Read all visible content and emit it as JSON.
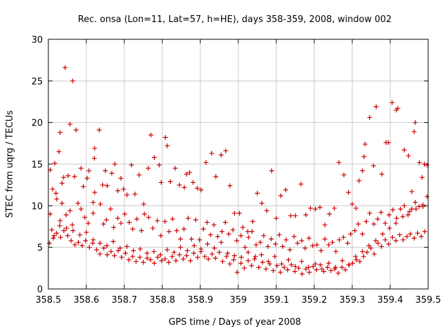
{
  "chart_data": {
    "type": "scatter",
    "title": "Rec. onsa (Lon=11, Lat=57, h=HE), days 358-359, 2008, window 002",
    "xlabel": "GPS time / Days of year 2008",
    "ylabel": "STEC from uqrg / TECUs",
    "xlim": [
      358.5,
      359.5
    ],
    "ylim": [
      0,
      30
    ],
    "xticks": [
      358.5,
      358.6,
      358.7,
      358.8,
      358.9,
      359,
      359.1,
      359.2,
      359.3,
      359.4,
      359.5
    ],
    "xtick_labels": [
      "358.5",
      "358.6",
      "358.7",
      "358.8",
      "358.9",
      "359",
      "359.1",
      "359.2",
      "359.3",
      "359.4",
      "359.5"
    ],
    "yticks": [
      0,
      5,
      10,
      15,
      20,
      25,
      30
    ],
    "ytick_labels": [
      "0",
      "5",
      "10",
      "15",
      "20",
      "25",
      "30"
    ],
    "grid": true,
    "marker": "+",
    "colors": {
      "points": "#cc0000",
      "grid": "#c8c8c8",
      "axes": "#000000"
    },
    "series": [
      {
        "x": [
          358.505,
          358.511,
          358.517,
          358.522,
          358.528,
          358.531,
          358.536,
          358.54,
          358.544,
          358.552,
          358.557,
          358.564,
          358.569,
          358.573,
          358.586,
          358.592,
          358.602,
          358.607,
          358.618,
          358.621,
          358.622,
          358.634,
          358.643,
          358.65,
          358.655,
          358.667,
          358.675,
          358.683,
          358.691,
          358.698,
          358.707,
          358.719,
          358.728,
          358.739,
          358.751,
          358.763,
          358.77,
          358.779,
          358.792,
          358.797,
          358.808,
          358.813,
          358.821,
          358.834,
          358.845,
          358.858,
          358.864,
          358.872,
          358.881,
          358.892,
          358.902,
          358.915,
          358.93,
          358.941,
          358.955,
          358.967,
          358.978,
          358.99,
          359.003,
          359.012,
          359.025,
          359.038,
          359.05,
          359.062,
          359.075,
          359.088,
          359.1,
          359.112,
          359.125,
          359.138,
          359.15,
          359.165,
          359.178,
          359.19,
          359.203,
          359.215,
          359.228,
          359.24,
          359.253,
          359.265,
          359.278,
          359.29,
          359.3,
          359.31,
          359.318,
          359.327,
          359.331,
          359.334,
          359.346,
          359.356,
          359.363,
          359.378,
          359.389,
          359.395,
          359.405,
          359.416,
          359.42,
          359.437,
          359.448,
          359.457,
          359.463,
          359.466,
          359.477,
          359.484,
          359.49,
          359.497
        ],
        "y": [
          14.3,
          12.0,
          15.1,
          10.8,
          16.5,
          18.8,
          10.3,
          13.4,
          26.6,
          13.6,
          19.8,
          25.0,
          13.5,
          19.1,
          14.5,
          12.3,
          13.3,
          14.2,
          10.4,
          15.7,
          16.9,
          19.1,
          12.5,
          14.2,
          12.4,
          13.9,
          15.0,
          11.8,
          13.3,
          12.0,
          11.3,
          14.9,
          11.4,
          13.7,
          10.2,
          14.5,
          18.5,
          15.8,
          14.9,
          12.8,
          18.2,
          17.2,
          12.9,
          14.5,
          12.5,
          12.2,
          13.8,
          14.0,
          12.8,
          12.1,
          11.9,
          15.2,
          16.3,
          13.5,
          16.1,
          16.6,
          12.4,
          9.1,
          9.1,
          7.4,
          6.9,
          8.1,
          11.5,
          10.3,
          9.4,
          14.2,
          8.5,
          11.2,
          11.9,
          8.8,
          8.8,
          12.6,
          8.9,
          9.7,
          9.6,
          9.8,
          7.7,
          9.0,
          9.7,
          15.2,
          13.7,
          11.6,
          10.2,
          9.7,
          13.0,
          14.2,
          15.9,
          17.4,
          20.6,
          14.8,
          21.9,
          13.8,
          17.6,
          17.6,
          22.4,
          21.5,
          21.7,
          16.7,
          16.0,
          11.7,
          18.9,
          20.0,
          15.2,
          13.4,
          15.0,
          14.9
        ]
      },
      {
        "x": [
          358.505,
          358.509,
          358.52,
          358.531,
          358.536,
          358.547,
          358.557,
          358.563,
          358.578,
          358.586,
          358.596,
          358.605,
          358.618,
          358.622,
          358.637,
          358.645,
          358.653,
          358.664,
          358.672,
          358.683,
          358.691,
          358.701,
          358.713,
          358.722,
          358.733,
          358.745,
          358.753,
          358.764,
          358.775,
          358.787,
          358.796,
          358.807,
          358.818,
          358.827,
          358.838,
          358.848,
          358.857,
          358.868,
          358.877,
          358.888,
          358.898,
          358.908,
          358.918,
          358.927,
          358.936,
          358.946,
          358.957,
          358.966,
          358.975,
          358.986,
          358.996,
          359.007,
          359.018,
          359.027,
          359.036,
          359.047,
          359.058,
          359.067,
          359.078,
          359.087,
          359.098,
          359.108,
          359.117,
          359.126,
          359.136,
          359.147,
          359.156,
          359.167,
          359.176,
          359.186,
          359.196,
          359.207,
          359.218,
          359.228,
          359.238,
          359.248,
          359.257,
          359.266,
          359.277,
          359.288,
          359.296,
          359.307,
          359.316,
          359.327,
          359.337,
          359.346,
          359.357,
          359.367,
          359.376,
          359.387,
          359.397,
          359.407,
          359.417,
          359.427,
          359.437,
          359.447,
          359.457,
          359.466,
          359.476,
          359.486,
          359.497
        ],
        "y": [
          9.0,
          7.1,
          11.5,
          8.2,
          12.7,
          8.9,
          9.4,
          7.7,
          10.3,
          9.6,
          8.6,
          7.9,
          9.1,
          11.6,
          10.2,
          7.8,
          8.3,
          9.6,
          7.4,
          8.5,
          7.9,
          9.0,
          8.0,
          7.2,
          8.4,
          7.0,
          9.0,
          8.6,
          7.3,
          8.2,
          6.4,
          8.1,
          6.9,
          8.4,
          7.0,
          6.0,
          7.2,
          8.5,
          6.0,
          8.3,
          5.9,
          7.2,
          8.0,
          6.5,
          7.7,
          6.3,
          6.9,
          8.0,
          6.6,
          7.1,
          5.8,
          6.4,
          5.0,
          6.2,
          6.9,
          5.3,
          5.6,
          6.4,
          5.1,
          6.0,
          5.4,
          6.5,
          5.1,
          5.9,
          4.7,
          6.3,
          5.5,
          5.8,
          4.9,
          6.1,
          5.2,
          5.3,
          4.6,
          6.0,
          5.3,
          5.6,
          4.5,
          5.9,
          6.2,
          5.5,
          6.6,
          7.0,
          7.8,
          6.6,
          8.1,
          9.1,
          7.8,
          8.4,
          9.2,
          7.9,
          8.9,
          9.5,
          8.5,
          9.6,
          10.0,
          8.9,
          9.6,
          10.4,
          9.9,
          10.1,
          11.1
        ]
      },
      {
        "x": [
          358.503,
          358.513,
          358.522,
          358.532,
          358.541,
          358.551,
          358.56,
          358.57,
          358.579,
          358.589,
          358.598,
          358.608,
          358.617,
          358.627,
          358.636,
          358.646,
          358.655,
          358.665,
          358.674,
          358.684,
          358.693,
          358.703,
          358.712,
          358.722,
          358.731,
          358.741,
          358.75,
          358.76,
          358.769,
          358.779,
          358.788,
          358.798,
          358.807,
          358.817,
          358.826,
          358.836,
          358.845,
          358.855,
          358.864,
          358.874,
          358.883,
          358.893,
          358.902,
          358.912,
          358.921,
          358.931,
          358.94,
          358.95,
          358.959,
          358.969,
          358.978,
          358.988,
          358.997,
          359.007,
          359.016,
          359.026,
          359.035,
          359.045,
          359.054,
          359.064,
          359.073,
          359.083,
          359.092,
          359.102,
          359.111,
          359.121,
          359.13,
          359.14,
          359.149,
          359.159,
          359.168,
          359.178,
          359.187,
          359.197,
          359.206,
          359.216,
          359.225,
          359.235,
          359.244,
          359.254,
          359.263,
          359.273,
          359.282,
          359.292,
          359.301,
          359.311,
          359.32,
          359.33,
          359.339,
          359.349,
          359.358,
          359.368,
          359.377,
          359.387,
          359.396,
          359.406,
          359.415,
          359.425,
          359.434,
          359.444,
          359.453,
          359.463,
          359.472,
          359.482,
          359.491
        ],
        "y": [
          5.5,
          6.1,
          6.7,
          6.2,
          7.0,
          6.4,
          5.8,
          5.3,
          5.6,
          5.2,
          5.8,
          5.0,
          5.5,
          4.7,
          4.2,
          4.9,
          4.1,
          4.5,
          4.0,
          4.6,
          3.8,
          4.3,
          3.5,
          3.9,
          3.3,
          3.8,
          3.2,
          3.7,
          3.5,
          3.1,
          3.8,
          3.4,
          3.6,
          3.2,
          3.9,
          3.4,
          4.1,
          3.6,
          4.0,
          3.4,
          4.3,
          3.8,
          4.5,
          3.9,
          3.6,
          4.2,
          3.7,
          4.4,
          3.3,
          3.9,
          3.0,
          3.5,
          2.0,
          3.1,
          2.5,
          3.4,
          2.8,
          3.9,
          2.6,
          3.2,
          2.4,
          3.0,
          2.2,
          2.8,
          2.0,
          2.6,
          2.3,
          2.9,
          2.1,
          2.5,
          1.8,
          2.4,
          2.0,
          2.7,
          2.3,
          2.9,
          2.1,
          2.6,
          2.2,
          2.4,
          1.9,
          2.6,
          2.3,
          2.9,
          3.1,
          3.5,
          3.3,
          3.9,
          4.4,
          4.9,
          4.2,
          5.5,
          5.1,
          5.9,
          5.4,
          6.2,
          5.8,
          6.5,
          5.9,
          6.3,
          6.6,
          6.1,
          6.7,
          6.3,
          6.9
        ]
      },
      {
        "x": [
          358.515,
          358.53,
          358.548,
          358.565,
          358.583,
          358.6,
          358.618,
          358.636,
          358.654,
          358.671,
          358.689,
          358.707,
          358.724,
          358.742,
          358.76,
          358.778,
          358.795,
          358.813,
          358.831,
          358.848,
          358.866,
          358.884,
          358.902,
          358.919,
          358.937,
          358.955,
          358.972,
          358.99,
          359.008,
          359.026,
          359.043,
          359.061,
          359.079,
          359.096,
          359.114,
          359.132,
          359.15,
          359.167,
          359.185,
          359.203,
          359.22,
          359.238,
          359.256,
          359.274,
          359.291,
          359.309,
          359.327,
          359.344,
          359.362,
          359.38,
          359.398,
          359.415,
          359.433,
          359.451,
          359.468,
          359.486
        ],
        "y": [
          6.4,
          7.6,
          7.3,
          7.0,
          6.5,
          6.8,
          5.9,
          5.5,
          5.2,
          5.7,
          4.9,
          5.1,
          4.6,
          4.8,
          4.3,
          4.5,
          4.1,
          4.7,
          4.4,
          5.0,
          4.6,
          5.2,
          4.8,
          5.4,
          4.9,
          5.6,
          4.3,
          4.0,
          3.8,
          4.4,
          3.6,
          4.1,
          3.3,
          3.9,
          3.0,
          3.5,
          2.7,
          3.3,
          2.6,
          3.0,
          2.4,
          3.1,
          2.6,
          3.4,
          2.9,
          3.9,
          4.5,
          5.2,
          5.8,
          6.6,
          7.3,
          7.9,
          8.7,
          9.3,
          9.6,
          9.9
        ]
      }
    ]
  }
}
